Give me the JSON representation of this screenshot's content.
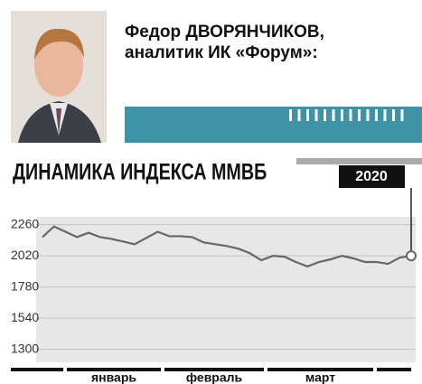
{
  "header": {
    "name": "Федор ДВОРЯНЧИКОВ,",
    "role": "аналитик ИК «Форум»:"
  },
  "chart_data": {
    "type": "line",
    "title": "ДИНАМИКА ИНДЕКСА ММВБ",
    "months": [
      "январь",
      "февраль",
      "март"
    ],
    "series": [
      {
        "color": "#666666",
        "values": [
          2164,
          2246,
          2205,
          2164,
          2198,
          2164,
          2150,
          2130,
          2109,
          2157,
          2205,
          2171,
          2171,
          2164,
          2123,
          2109,
          2095,
          2075,
          2040,
          1986,
          2020,
          2013,
          1972,
          1938,
          1972,
          1993,
          2020,
          2000,
          1972,
          1972,
          1958,
          2006,
          2020
        ]
      }
    ],
    "ylim": [
      1200,
      2320
    ],
    "yticks": [
      1300,
      1540,
      1780,
      2020,
      2260
    ],
    "grid": true
  }
}
